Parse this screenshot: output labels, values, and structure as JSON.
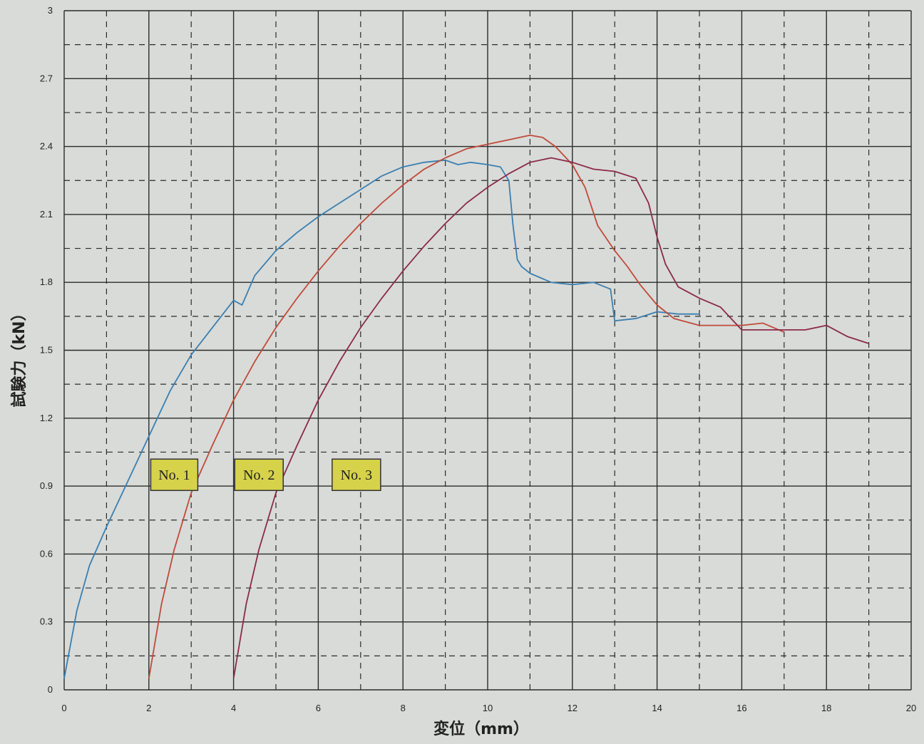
{
  "chart_data": {
    "type": "line",
    "xlabel": "変位（mm）",
    "ylabel": "試験力（kN）",
    "xlim": [
      0,
      20
    ],
    "ylim": [
      0,
      3
    ],
    "x_ticks": [
      "0",
      "2",
      "4",
      "6",
      "8",
      "10",
      "12",
      "14",
      "16",
      "18",
      "20"
    ],
    "y_ticks": [
      "0",
      "0.3",
      "0.6",
      "0.9",
      "1.2",
      "1.5",
      "1.8",
      "2.1",
      "2.4",
      "2.7",
      "3"
    ],
    "grid": true,
    "legend_placement": "center-left",
    "series": [
      {
        "name": "No. 1",
        "color": "#3a7fb0",
        "points": [
          [
            0,
            0.05
          ],
          [
            0.3,
            0.35
          ],
          [
            0.6,
            0.55
          ],
          [
            1.0,
            0.72
          ],
          [
            1.5,
            0.92
          ],
          [
            2.0,
            1.12
          ],
          [
            2.5,
            1.32
          ],
          [
            3.0,
            1.48
          ],
          [
            3.5,
            1.6
          ],
          [
            4.0,
            1.72
          ],
          [
            4.2,
            1.7
          ],
          [
            4.5,
            1.83
          ],
          [
            5.0,
            1.94
          ],
          [
            5.5,
            2.02
          ],
          [
            6.0,
            2.09
          ],
          [
            6.5,
            2.15
          ],
          [
            7.0,
            2.21
          ],
          [
            7.5,
            2.27
          ],
          [
            8.0,
            2.31
          ],
          [
            8.5,
            2.33
          ],
          [
            9.0,
            2.34
          ],
          [
            9.3,
            2.32
          ],
          [
            9.6,
            2.33
          ],
          [
            10.0,
            2.32
          ],
          [
            10.3,
            2.31
          ],
          [
            10.5,
            2.25
          ],
          [
            10.6,
            2.05
          ],
          [
            10.7,
            1.9
          ],
          [
            10.8,
            1.87
          ],
          [
            11.0,
            1.84
          ],
          [
            11.5,
            1.8
          ],
          [
            12.0,
            1.79
          ],
          [
            12.5,
            1.8
          ],
          [
            12.9,
            1.77
          ],
          [
            13.0,
            1.63
          ],
          [
            13.5,
            1.64
          ],
          [
            14.0,
            1.67
          ],
          [
            14.5,
            1.66
          ],
          [
            15.0,
            1.66
          ]
        ]
      },
      {
        "name": "No. 2",
        "color": "#c04a3a",
        "points": [
          [
            2.0,
            0.05
          ],
          [
            2.3,
            0.38
          ],
          [
            2.6,
            0.62
          ],
          [
            3.0,
            0.87
          ],
          [
            3.5,
            1.08
          ],
          [
            4.0,
            1.28
          ],
          [
            4.5,
            1.45
          ],
          [
            5.0,
            1.6
          ],
          [
            5.5,
            1.73
          ],
          [
            6.0,
            1.85
          ],
          [
            6.5,
            1.96
          ],
          [
            7.0,
            2.06
          ],
          [
            7.5,
            2.15
          ],
          [
            8.0,
            2.23
          ],
          [
            8.5,
            2.3
          ],
          [
            9.0,
            2.35
          ],
          [
            9.5,
            2.39
          ],
          [
            10.0,
            2.41
          ],
          [
            10.5,
            2.43
          ],
          [
            11.0,
            2.45
          ],
          [
            11.3,
            2.44
          ],
          [
            11.6,
            2.4
          ],
          [
            12.0,
            2.32
          ],
          [
            12.3,
            2.22
          ],
          [
            12.6,
            2.05
          ],
          [
            13.0,
            1.94
          ],
          [
            13.3,
            1.87
          ],
          [
            13.6,
            1.79
          ],
          [
            14.0,
            1.7
          ],
          [
            14.4,
            1.64
          ],
          [
            15.0,
            1.61
          ],
          [
            15.5,
            1.61
          ],
          [
            16.0,
            1.61
          ],
          [
            16.5,
            1.62
          ],
          [
            17.0,
            1.58
          ]
        ]
      },
      {
        "name": "No. 3",
        "color": "#8a2a4a",
        "points": [
          [
            4.0,
            0.05
          ],
          [
            4.3,
            0.38
          ],
          [
            4.6,
            0.62
          ],
          [
            5.0,
            0.87
          ],
          [
            5.5,
            1.08
          ],
          [
            6.0,
            1.28
          ],
          [
            6.5,
            1.45
          ],
          [
            7.0,
            1.6
          ],
          [
            7.5,
            1.73
          ],
          [
            8.0,
            1.85
          ],
          [
            8.5,
            1.96
          ],
          [
            9.0,
            2.06
          ],
          [
            9.5,
            2.15
          ],
          [
            10.0,
            2.22
          ],
          [
            10.5,
            2.28
          ],
          [
            11.0,
            2.33
          ],
          [
            11.5,
            2.35
          ],
          [
            12.0,
            2.33
          ],
          [
            12.5,
            2.3
          ],
          [
            13.0,
            2.29
          ],
          [
            13.5,
            2.26
          ],
          [
            13.8,
            2.15
          ],
          [
            14.0,
            2.0
          ],
          [
            14.2,
            1.88
          ],
          [
            14.5,
            1.78
          ],
          [
            15.0,
            1.73
          ],
          [
            15.5,
            1.69
          ],
          [
            15.8,
            1.63
          ],
          [
            16.0,
            1.59
          ],
          [
            16.5,
            1.59
          ],
          [
            17.0,
            1.59
          ],
          [
            17.5,
            1.59
          ],
          [
            18.0,
            1.61
          ],
          [
            18.5,
            1.56
          ],
          [
            19.0,
            1.53
          ]
        ]
      }
    ]
  }
}
